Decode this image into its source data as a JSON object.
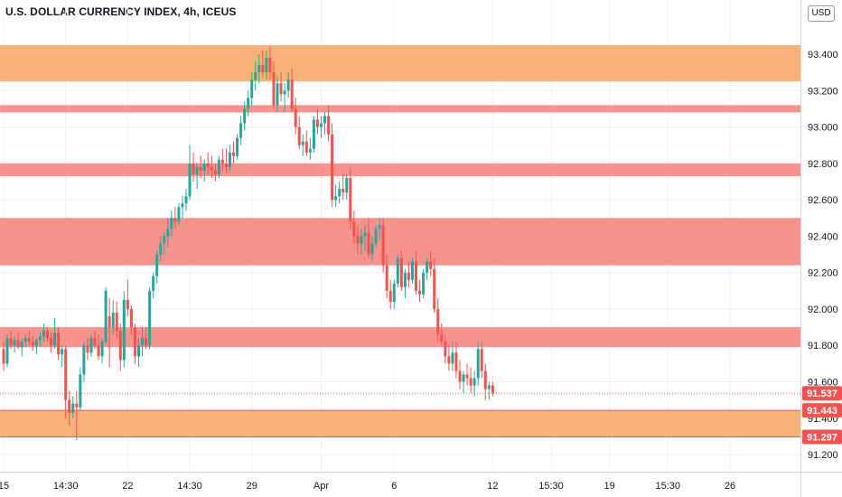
{
  "header": {
    "title": "U.S. DOLLAR CURRENCY INDEX, 4h, ICEUS"
  },
  "currency_button": {
    "label": "USD"
  },
  "colors": {
    "up": "#26a69a",
    "down": "#ef5350",
    "zone_orange": "#f7b27a",
    "zone_red": "#f7928c",
    "price_line": "#ef5350",
    "grid": "#eef0f3",
    "axis_text": "#131722"
  },
  "chart_data": {
    "type": "candlestick",
    "title": "U.S. DOLLAR CURRENCY INDEX, 4h, ICEUS",
    "xlabel": "",
    "ylabel": "",
    "ylim": [
      91.1,
      94.2
    ],
    "grid": true,
    "y_ticks": [
      "93.400",
      "93.200",
      "93.000",
      "92.800",
      "92.600",
      "92.400",
      "92.200",
      "92.000",
      "91.800",
      "91.600",
      "91.400",
      "91.200"
    ],
    "x_ticks": [
      {
        "label": "15",
        "index": 0
      },
      {
        "label": "14:30",
        "index": 17
      },
      {
        "label": "22",
        "index": 34
      },
      {
        "label": "14:30",
        "index": 51
      },
      {
        "label": "29",
        "index": 68
      },
      {
        "label": "Apr",
        "index": 87
      },
      {
        "label": "6",
        "index": 107
      },
      {
        "label": "12",
        "index": 134
      },
      {
        "label": "15:30",
        "index": 150
      },
      {
        "label": "19",
        "index": 166
      },
      {
        "label": "15:30",
        "index": 182
      },
      {
        "label": "26",
        "index": 199
      }
    ],
    "zones": [
      {
        "color": "orange",
        "from": 93.25,
        "to": 93.45
      },
      {
        "color": "red",
        "from": 93.08,
        "to": 93.12
      },
      {
        "color": "red",
        "from": 92.73,
        "to": 92.8
      },
      {
        "color": "red",
        "from": 92.24,
        "to": 92.5
      },
      {
        "color": "red",
        "from": 91.79,
        "to": 91.9
      },
      {
        "color": "orange",
        "from": 91.297,
        "to": 91.443
      }
    ],
    "levels": [
      {
        "value": 91.443,
        "label": "91.443"
      },
      {
        "value": 91.297,
        "label": "91.297"
      }
    ],
    "last_price": {
      "value": 91.537,
      "label": "91.537"
    },
    "candles": [
      [
        91.78,
        91.82,
        91.66,
        91.7
      ],
      [
        91.7,
        91.86,
        91.68,
        91.84
      ],
      [
        91.84,
        91.88,
        91.78,
        91.8
      ],
      [
        91.8,
        91.85,
        91.76,
        91.83
      ],
      [
        91.83,
        91.87,
        91.78,
        91.79
      ],
      [
        91.79,
        91.84,
        91.74,
        91.82
      ],
      [
        91.82,
        91.86,
        91.79,
        91.84
      ],
      [
        91.84,
        91.88,
        91.8,
        91.82
      ],
      [
        91.82,
        91.85,
        91.77,
        91.8
      ],
      [
        91.8,
        91.84,
        91.75,
        91.83
      ],
      [
        91.83,
        91.87,
        91.8,
        91.85
      ],
      [
        91.85,
        91.92,
        91.82,
        91.88
      ],
      [
        91.88,
        91.9,
        91.82,
        91.84
      ],
      [
        91.84,
        91.87,
        91.76,
        91.8
      ],
      [
        91.8,
        91.95,
        91.78,
        91.87
      ],
      [
        91.87,
        91.9,
        91.72,
        91.75
      ],
      [
        91.75,
        91.8,
        91.68,
        91.78
      ],
      [
        91.78,
        91.8,
        91.4,
        91.5
      ],
      [
        91.5,
        91.55,
        91.36,
        91.43
      ],
      [
        91.43,
        91.52,
        91.4,
        91.48
      ],
      [
        91.48,
        91.55,
        91.28,
        91.46
      ],
      [
        91.46,
        91.68,
        91.44,
        91.64
      ],
      [
        91.64,
        91.82,
        91.6,
        91.8
      ],
      [
        91.8,
        91.84,
        91.72,
        91.76
      ],
      [
        91.76,
        91.86,
        91.74,
        91.84
      ],
      [
        91.84,
        91.88,
        91.78,
        91.8
      ],
      [
        91.8,
        91.86,
        91.72,
        91.74
      ],
      [
        91.74,
        91.84,
        91.7,
        91.82
      ],
      [
        91.82,
        92.12,
        91.8,
        92.1
      ],
      [
        91.96,
        92.06,
        91.68,
        91.9
      ],
      [
        91.9,
        92.05,
        91.86,
        91.98
      ],
      [
        91.98,
        92.04,
        91.84,
        91.88
      ],
      [
        91.88,
        91.92,
        91.66,
        91.72
      ],
      [
        91.72,
        92.1,
        91.68,
        92.05
      ],
      [
        92.05,
        92.16,
        91.96,
        92.0
      ],
      [
        92.0,
        92.02,
        91.86,
        91.9
      ],
      [
        91.9,
        91.92,
        91.7,
        91.74
      ],
      [
        91.74,
        91.84,
        91.68,
        91.8
      ],
      [
        91.8,
        91.9,
        91.74,
        91.84
      ],
      [
        91.84,
        91.9,
        91.78,
        91.8
      ],
      [
        91.8,
        92.12,
        91.78,
        92.1
      ],
      [
        92.1,
        92.2,
        92.06,
        92.18
      ],
      [
        92.18,
        92.32,
        92.14,
        92.3
      ],
      [
        92.3,
        92.4,
        92.26,
        92.36
      ],
      [
        92.36,
        92.42,
        92.3,
        92.4
      ],
      [
        92.4,
        92.5,
        92.34,
        92.44
      ],
      [
        92.44,
        92.54,
        92.4,
        92.5
      ],
      [
        92.5,
        92.56,
        92.44,
        92.48
      ],
      [
        92.48,
        92.58,
        92.46,
        92.56
      ],
      [
        92.56,
        92.62,
        92.5,
        92.58
      ],
      [
        92.58,
        92.66,
        92.54,
        92.62
      ],
      [
        92.62,
        92.9,
        92.6,
        92.8
      ],
      [
        92.8,
        92.86,
        92.7,
        92.74
      ],
      [
        92.74,
        92.8,
        92.66,
        92.78
      ],
      [
        92.78,
        92.84,
        92.72,
        92.76
      ],
      [
        92.76,
        92.82,
        92.7,
        92.8
      ],
      [
        92.8,
        92.86,
        92.74,
        92.78
      ],
      [
        92.78,
        92.84,
        92.72,
        92.76
      ],
      [
        92.76,
        92.8,
        92.7,
        92.74
      ],
      [
        92.74,
        92.84,
        92.72,
        92.82
      ],
      [
        92.82,
        92.88,
        92.76,
        92.8
      ],
      [
        92.8,
        92.88,
        92.74,
        92.78
      ],
      [
        92.78,
        92.9,
        92.76,
        92.86
      ],
      [
        92.86,
        92.92,
        92.8,
        92.84
      ],
      [
        92.84,
        92.96,
        92.82,
        92.94
      ],
      [
        92.94,
        93.06,
        92.9,
        93.02
      ],
      [
        93.02,
        93.14,
        92.98,
        93.1
      ],
      [
        93.1,
        93.2,
        93.06,
        93.16
      ],
      [
        93.16,
        93.3,
        93.12,
        93.26
      ],
      [
        93.26,
        93.36,
        93.2,
        93.3
      ],
      [
        93.3,
        93.4,
        93.24,
        93.34
      ],
      [
        93.34,
        93.42,
        93.28,
        93.3
      ],
      [
        93.3,
        93.42,
        93.26,
        93.38
      ],
      [
        93.38,
        93.44,
        93.26,
        93.3
      ],
      [
        93.3,
        93.36,
        93.1,
        93.12
      ],
      [
        93.12,
        93.28,
        93.08,
        93.24
      ],
      [
        93.24,
        93.3,
        93.14,
        93.18
      ],
      [
        93.18,
        93.24,
        93.08,
        93.2
      ],
      [
        93.2,
        93.3,
        93.16,
        93.26
      ],
      [
        93.26,
        93.32,
        93.08,
        93.1
      ],
      [
        93.1,
        93.16,
        92.96,
        93.0
      ],
      [
        93.0,
        93.06,
        92.88,
        92.9
      ],
      [
        92.9,
        92.96,
        92.84,
        92.92
      ],
      [
        92.92,
        92.98,
        92.84,
        92.86
      ],
      [
        92.86,
        92.94,
        92.82,
        92.88
      ],
      [
        92.88,
        93.06,
        92.86,
        93.04
      ],
      [
        93.04,
        93.1,
        92.96,
        93.0
      ],
      [
        93.0,
        93.06,
        92.94,
        93.02
      ],
      [
        93.02,
        93.08,
        92.96,
        93.06
      ],
      [
        93.06,
        93.12,
        92.92,
        92.96
      ],
      [
        92.96,
        93.02,
        92.56,
        92.6
      ],
      [
        92.6,
        92.68,
        92.56,
        92.62
      ],
      [
        92.62,
        92.7,
        92.58,
        92.66
      ],
      [
        92.66,
        92.74,
        92.6,
        92.64
      ],
      [
        92.64,
        92.74,
        92.6,
        92.72
      ],
      [
        92.72,
        92.78,
        92.44,
        92.48
      ],
      [
        92.48,
        92.54,
        92.36,
        92.4
      ],
      [
        92.4,
        92.46,
        92.3,
        92.36
      ],
      [
        92.36,
        92.44,
        92.3,
        92.4
      ],
      [
        92.4,
        92.46,
        92.32,
        92.42
      ],
      [
        92.42,
        92.5,
        92.28,
        92.3
      ],
      [
        92.3,
        92.4,
        92.26,
        92.36
      ],
      [
        92.36,
        92.46,
        92.34,
        92.44
      ],
      [
        92.44,
        92.5,
        92.38,
        92.46
      ],
      [
        92.46,
        92.5,
        92.2,
        92.24
      ],
      [
        92.24,
        92.3,
        92.06,
        92.1
      ],
      [
        92.1,
        92.16,
        92.0,
        92.04
      ],
      [
        92.04,
        92.16,
        92.0,
        92.14
      ],
      [
        92.14,
        92.3,
        92.12,
        92.28
      ],
      [
        92.28,
        92.32,
        92.1,
        92.12
      ],
      [
        92.12,
        92.22,
        92.06,
        92.2
      ],
      [
        92.2,
        92.26,
        92.12,
        92.16
      ],
      [
        92.16,
        92.28,
        92.14,
        92.26
      ],
      [
        92.26,
        92.32,
        92.08,
        92.1
      ],
      [
        92.1,
        92.16,
        92.04,
        92.08
      ],
      [
        92.08,
        92.22,
        92.06,
        92.2
      ],
      [
        92.2,
        92.28,
        92.16,
        92.26
      ],
      [
        92.26,
        92.32,
        92.18,
        92.22
      ],
      [
        92.22,
        92.28,
        91.98,
        92.0
      ],
      [
        92.0,
        92.06,
        91.82,
        91.86
      ],
      [
        91.86,
        91.92,
        91.8,
        91.82
      ],
      [
        91.82,
        91.86,
        91.7,
        91.74
      ],
      [
        91.74,
        91.8,
        91.66,
        91.7
      ],
      [
        91.7,
        91.82,
        91.66,
        91.76
      ],
      [
        91.76,
        91.82,
        91.62,
        91.66
      ],
      [
        91.66,
        91.72,
        91.56,
        91.6
      ],
      [
        91.6,
        91.66,
        91.54,
        91.64
      ],
      [
        91.64,
        91.7,
        91.58,
        91.62
      ],
      [
        91.62,
        91.68,
        91.54,
        91.58
      ],
      [
        91.58,
        91.66,
        91.52,
        91.62
      ],
      [
        91.62,
        91.82,
        91.58,
        91.78
      ],
      [
        91.78,
        91.82,
        91.62,
        91.66
      ],
      [
        91.66,
        91.7,
        91.5,
        91.56
      ],
      [
        91.56,
        91.6,
        91.5,
        91.58
      ],
      [
        91.58,
        91.6,
        91.52,
        91.54
      ]
    ]
  }
}
